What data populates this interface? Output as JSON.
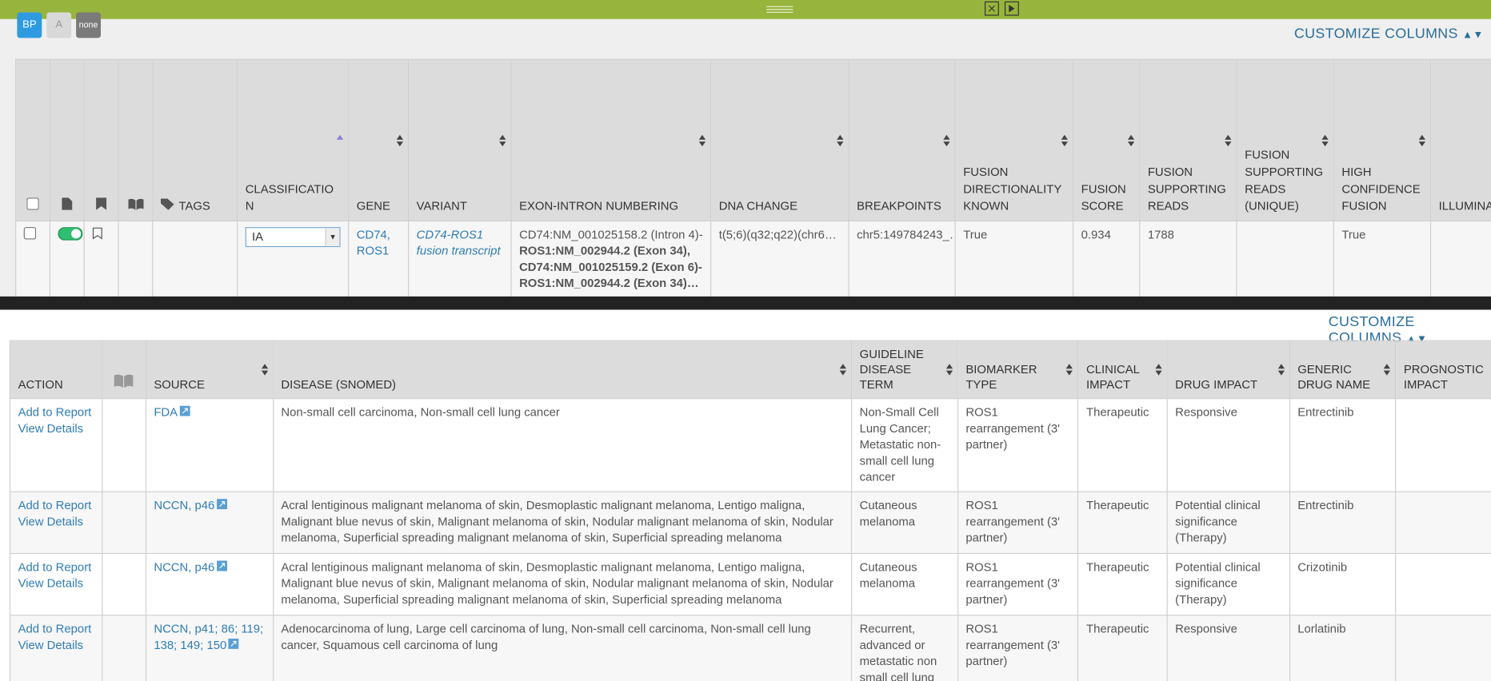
{
  "toolbar": {
    "buttons": [
      "BP",
      "A",
      "none"
    ]
  },
  "top_table": {
    "customize": "CUSTOMIZE COLUMNS",
    "headers": [
      "TAGS",
      "CLASSIFICATION",
      "GENE",
      "VARIANT",
      "EXON-INTRON NUMBERING",
      "DNA CHANGE",
      "BREAKPOINTS",
      "FUSION DIRECTIONALITY KNOWN",
      "FUSION SCORE",
      "FUSION SUPPORTING READS",
      "FUSION SUPPORTING READS (UNIQUE)",
      "HIGH CONFIDENCE FUSION",
      "ILLUMINA FILTER"
    ],
    "row": {
      "classification": "IA",
      "gene": "CD74, ROS1",
      "variant": "CD74-ROS1 fusion transcript",
      "exon_intron": [
        {
          "text": "CD74:NM_001025158.2 (Intron 4)-",
          "bold": false
        },
        {
          "text": "ROS1:NM_002944.2 (Exon 34),",
          "bold": true
        },
        {
          "text": "CD74:NM_001025159.2 (Exon 6)-",
          "bold": true
        },
        {
          "text": "ROS1:NM_002944.2 (Exon 34)…",
          "bold": true
        }
      ],
      "dna_change": "t(5;6)(q32;q22)(chr6…",
      "breakpoints": "chr5:149784243_…",
      "fusion_directionality_known": "True",
      "fusion_score": 0.934,
      "fusion_supporting_reads": 1788,
      "high_confidence_fusion": "True"
    }
  },
  "bottom_table": {
    "customize": "CUSTOMIZE COLUMNS",
    "headers": [
      "ACTION",
      "SOURCE",
      "DISEASE (SNOMED)",
      "GUIDELINE DISEASE TERM",
      "BIOMARKER TYPE",
      "CLINICAL IMPACT",
      "DRUG IMPACT",
      "GENERIC DRUG NAME",
      "PROGNOSTIC IMPACT"
    ],
    "rows": [
      {
        "actions": [
          "Add to Report",
          "View Details"
        ],
        "source": "FDA",
        "disease": "Non-small cell carcinoma, Non-small cell lung cancer",
        "guideline_term": "Non-Small Cell Lung Cancer; Metastatic non-small cell lung cancer",
        "biomarker_type": "ROS1 rearrangement (3' partner)",
        "clinical_impact": "Therapeutic",
        "drug_impact": "Responsive",
        "generic_drug_name": "Entrectinib"
      },
      {
        "actions": [
          "Add to Report",
          "View Details"
        ],
        "source": "NCCN, p46",
        "disease": "Acral lentiginous malignant melanoma of skin, Desmoplastic malignant melanoma, Lentigo maligna, Malignant blue nevus of skin, Malignant melanoma of skin, Nodular malignant melanoma of skin, Nodular melanoma, Superficial spreading malignant melanoma of skin, Superficial spreading melanoma",
        "guideline_term": "Cutaneous melanoma",
        "biomarker_type": "ROS1 rearrangement (3' partner)",
        "clinical_impact": "Therapeutic",
        "drug_impact": "Potential clinical significance (Therapy)",
        "generic_drug_name": "Entrectinib"
      },
      {
        "actions": [
          "Add to Report",
          "View Details"
        ],
        "source": "NCCN, p46",
        "disease": "Acral lentiginous malignant melanoma of skin, Desmoplastic malignant melanoma, Lentigo maligna, Malignant blue nevus of skin, Malignant melanoma of skin, Nodular malignant melanoma of skin, Nodular melanoma, Superficial spreading malignant melanoma of skin, Superficial spreading melanoma",
        "guideline_term": "Cutaneous melanoma",
        "biomarker_type": "ROS1 rearrangement (3' partner)",
        "clinical_impact": "Therapeutic",
        "drug_impact": "Potential clinical significance (Therapy)",
        "generic_drug_name": "Crizotinib"
      },
      {
        "actions": [
          "Add to Report",
          "View Details"
        ],
        "source": "NCCN, p41; 86; 119; 138; 149; 150",
        "disease": "Adenocarcinoma of lung, Large cell carcinoma of lung, Non-small cell carcinoma, Non-small cell lung cancer, Squamous cell carcinoma of lung",
        "guideline_term": "Recurrent, advanced or metastatic non small cell lung cancer",
        "biomarker_type": "ROS1 rearrangement (3' partner)",
        "clinical_impact": "Therapeutic",
        "drug_impact": "Responsive",
        "generic_drug_name": "Lorlatinib"
      }
    ]
  }
}
